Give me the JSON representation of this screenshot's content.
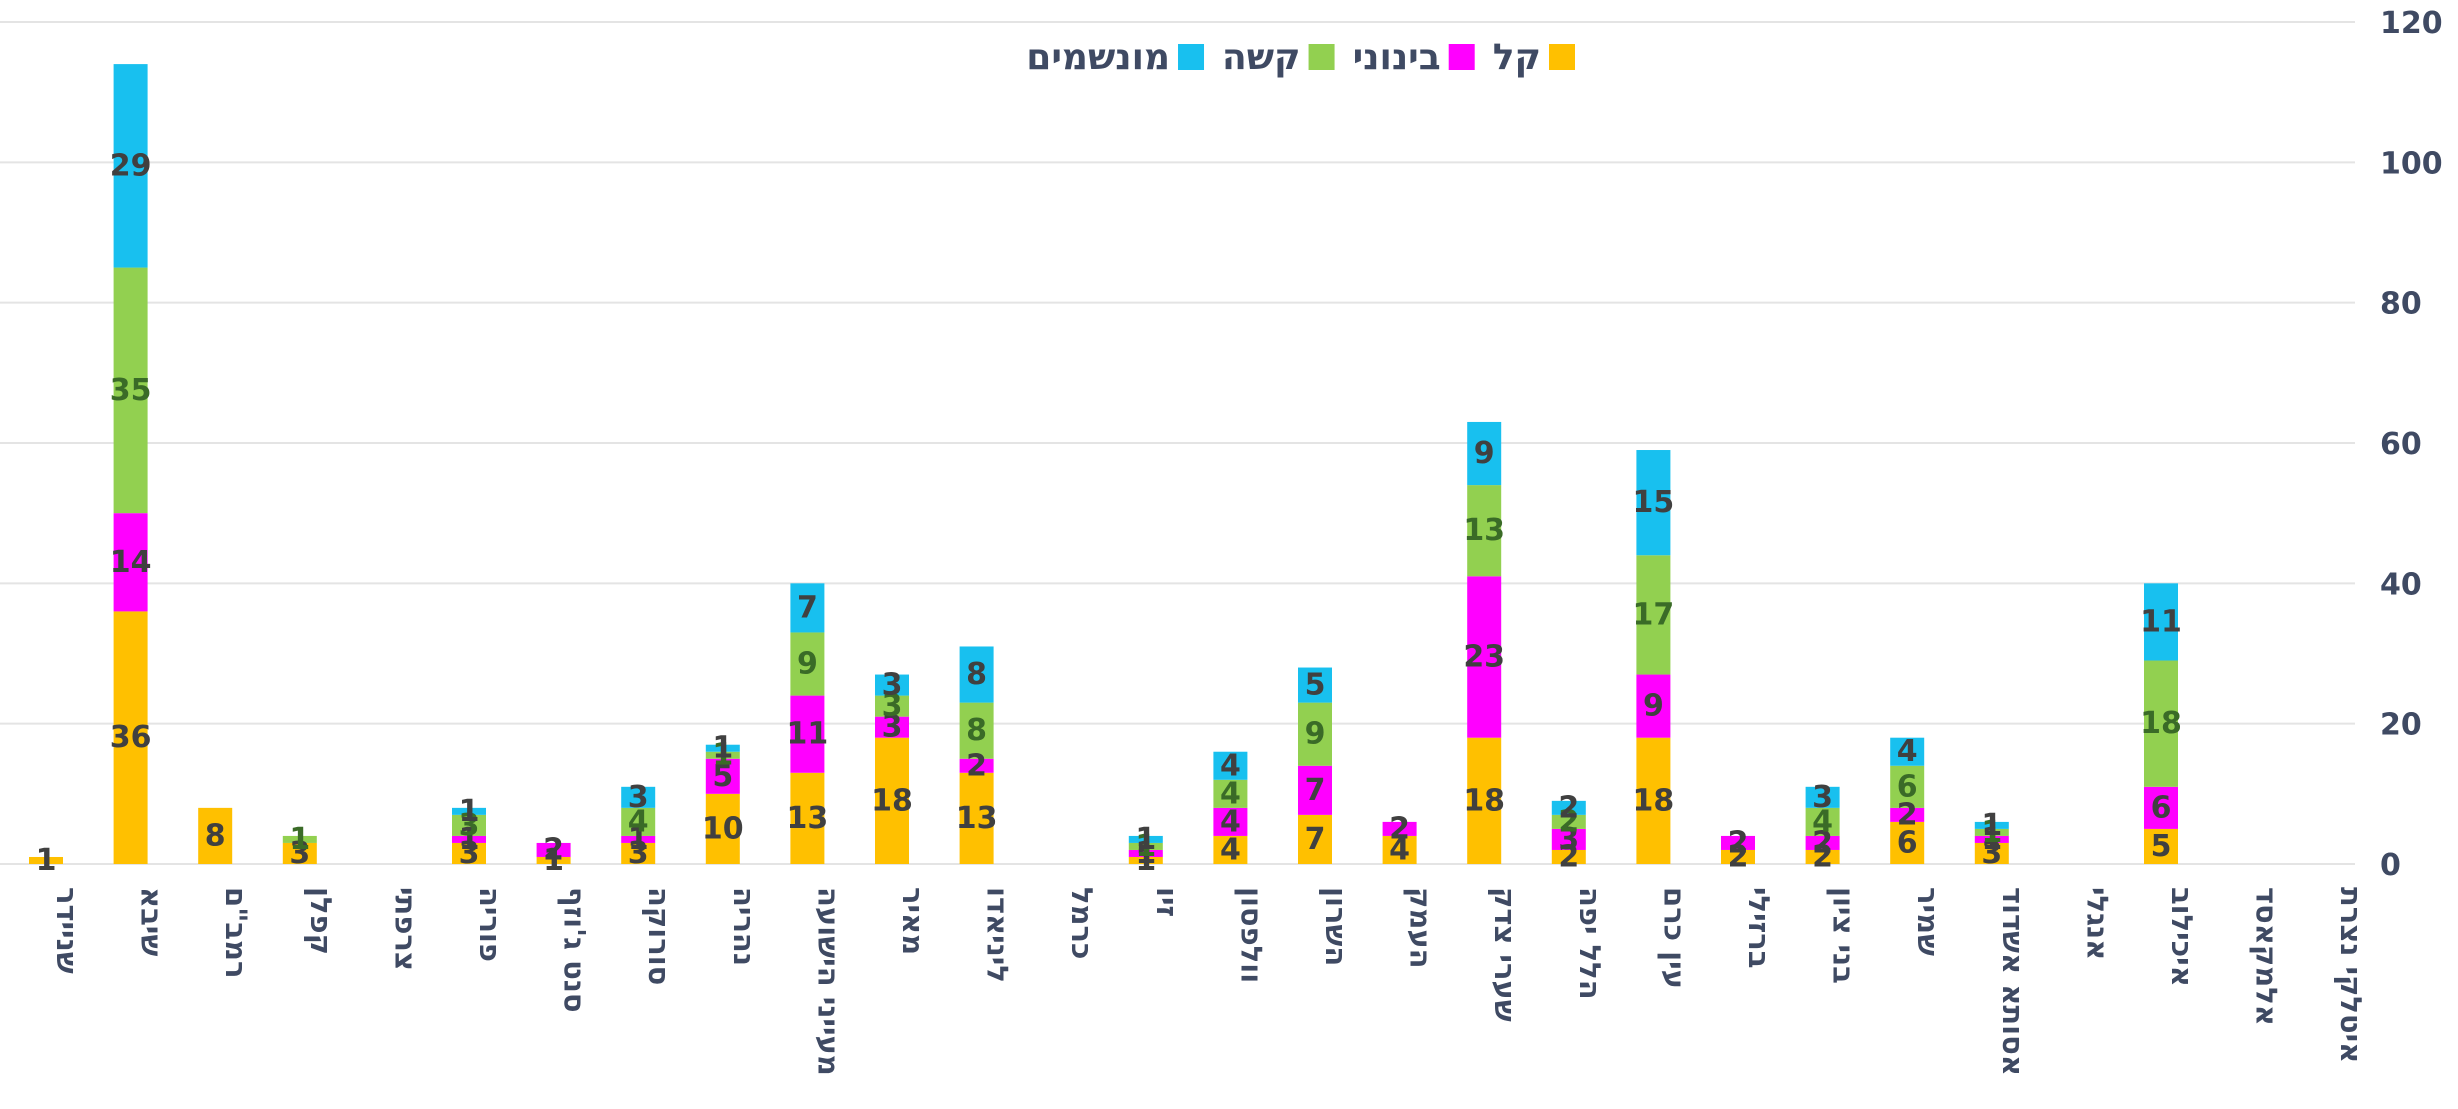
{
  "chart_data": {
    "type": "bar",
    "stacked": true,
    "categories": [
      "שניידר",
      "שיבא",
      "רמב\"ם",
      "קפלן",
      "צרפתי",
      "פוריה",
      "סנט ג'וזף",
      "סורוקה",
      "נהריה",
      "מעייני הישועה",
      "מאיר",
      "ליניאדו",
      "כרמל",
      "זיו",
      "וולפסון",
      "השרון",
      "העמק",
      "שערי צדק",
      "הלל יפה",
      "עין כרם",
      "ברזילי",
      "בני ציון",
      "שמיר",
      "אסותא אשדוד",
      "אנגלי",
      "איכילוב",
      "אלמקאסד",
      "איטלקי נצרת"
    ],
    "series": [
      {
        "name": "קל",
        "color": "#ffc000",
        "values": [
          1,
          36,
          8,
          3,
          0,
          3,
          1,
          3,
          10,
          13,
          18,
          13,
          0,
          1,
          4,
          7,
          4,
          18,
          2,
          18,
          2,
          2,
          6,
          3,
          0,
          5,
          0,
          0
        ]
      },
      {
        "name": "בינוני",
        "color": "#ff00ff",
        "values": [
          0,
          14,
          0,
          0,
          0,
          1,
          2,
          1,
          5,
          11,
          3,
          2,
          0,
          1,
          4,
          7,
          2,
          23,
          3,
          9,
          2,
          2,
          2,
          1,
          0,
          6,
          0,
          0
        ]
      },
      {
        "name": "קשה",
        "color": "#92d050",
        "values": [
          0,
          35,
          0,
          1,
          0,
          3,
          0,
          4,
          1,
          9,
          3,
          8,
          0,
          1,
          4,
          9,
          0,
          13,
          2,
          17,
          0,
          4,
          6,
          1,
          0,
          18,
          0,
          0
        ]
      },
      {
        "name": "מונשמים",
        "color": "#18c0ef",
        "values": [
          0,
          29,
          0,
          0,
          0,
          1,
          0,
          3,
          1,
          7,
          3,
          8,
          0,
          1,
          4,
          5,
          0,
          9,
          2,
          15,
          0,
          3,
          4,
          1,
          0,
          11,
          0,
          0
        ]
      }
    ],
    "y_ticks": [
      "0",
      "20",
      "40",
      "60",
      "80",
      "100",
      "120"
    ],
    "ylim": [
      0,
      120
    ],
    "y_axis_side": "right",
    "legend_position": "top-center",
    "grid": true
  }
}
